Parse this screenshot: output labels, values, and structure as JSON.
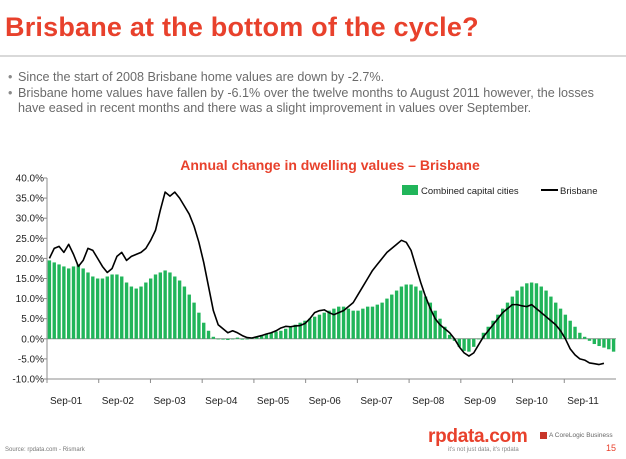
{
  "slide": {
    "title": "Brisbane at the bottom of the cycle?",
    "bullets": [
      "Since the start of 2008 Brisbane home values are down by -2.7%.",
      "Brisbane home values have fallen by -6.1% over the twelve months to August 2011 however, the losses have eased in recent months and there was a slight improvement in values over September."
    ],
    "source": "Source: rpdata.com - Rismark",
    "logo": "rpdata.com",
    "tagline": "it's not just data, it's rpdata",
    "corelogic": "A CoreLogic Business",
    "page_number": "15"
  },
  "chart_data": {
    "type": "bar",
    "title": "Annual change in dwelling values – Brisbane",
    "ylim": [
      -10,
      40
    ],
    "yticks": [
      "-10.0%",
      "-5.0%",
      "0.0%",
      "5.0%",
      "10.0%",
      "15.0%",
      "20.0%",
      "25.0%",
      "30.0%",
      "35.0%",
      "40.0%"
    ],
    "xticks": [
      "Sep-01",
      "Sep-02",
      "Sep-03",
      "Sep-04",
      "Sep-05",
      "Sep-06",
      "Sep-07",
      "Sep-08",
      "Sep-09",
      "Sep-10",
      "Sep-11"
    ],
    "grid": false,
    "legend_position": "top-right",
    "series": [
      {
        "name": "Combined capital cities",
        "type": "bar",
        "color": "#21b55a",
        "values": [
          19.5,
          19,
          18.5,
          18,
          17.5,
          18,
          18.5,
          17.5,
          16.5,
          15.5,
          15,
          15,
          15.5,
          16,
          16,
          15.5,
          14,
          13,
          12.5,
          13,
          14,
          15,
          16,
          16.5,
          17,
          16.5,
          15.5,
          14.5,
          13,
          11,
          9,
          6.5,
          4,
          2,
          0.5,
          0,
          -0.2,
          -0.3,
          0,
          0.3,
          -0.2,
          0,
          0.2,
          0.5,
          0.8,
          1.2,
          1.5,
          1.8,
          2,
          2.5,
          3,
          3.5,
          4,
          4.5,
          5,
          5.5,
          6,
          6.5,
          7,
          7.5,
          8,
          8,
          7.5,
          7,
          7,
          7.5,
          8,
          8,
          8.5,
          9,
          10,
          11,
          12,
          13,
          13.5,
          13.5,
          13,
          12,
          10.5,
          9,
          7,
          5,
          3,
          1,
          -0.5,
          -2,
          -3,
          -3.2,
          -2,
          0,
          1.5,
          3,
          4.5,
          6,
          7.5,
          9,
          10.5,
          12,
          13,
          13.8,
          14,
          13.8,
          13,
          12,
          10.5,
          9,
          7.5,
          6,
          4.5,
          3,
          1.5,
          0.5,
          -0.5,
          -1.3,
          -1.8,
          -2.2,
          -2.6,
          -3.2
        ]
      },
      {
        "name": "Brisbane",
        "type": "line",
        "color": "#000000",
        "values": [
          20,
          22.5,
          23,
          21.5,
          23.5,
          21,
          18,
          19.5,
          22.5,
          22,
          20,
          18,
          16.5,
          17.5,
          20.5,
          21.5,
          19.5,
          20.5,
          21,
          21.5,
          22.5,
          24.5,
          27,
          32,
          36.5,
          35.5,
          36.5,
          35,
          33,
          31,
          28,
          24,
          19,
          13,
          7,
          3.5,
          2.5,
          1.5,
          2,
          1.5,
          0.8,
          0.3,
          0.2,
          0.5,
          0.8,
          1.2,
          1.5,
          2,
          2.7,
          3.1,
          3,
          3.2,
          3.3,
          3.8,
          5,
          6.5,
          7,
          7.2,
          6.5,
          6,
          6.5,
          7,
          8,
          9,
          11,
          13,
          15,
          17,
          18.5,
          20,
          21.5,
          22.5,
          23.5,
          24.5,
          24,
          22,
          18,
          14,
          10.5,
          7.5,
          5,
          3.5,
          2.5,
          1.5,
          0,
          -2,
          -3.5,
          -4.3,
          -3.5,
          -1.5,
          0.5,
          2,
          3.5,
          5,
          6.5,
          7.5,
          8.5,
          8.5,
          8.2,
          8,
          8.5,
          7.5,
          6.5,
          5.5,
          4.5,
          3.5,
          2,
          0,
          -2.5,
          -4,
          -5,
          -5.3,
          -6,
          -6.2,
          -6.4,
          -6.1
        ]
      }
    ]
  }
}
